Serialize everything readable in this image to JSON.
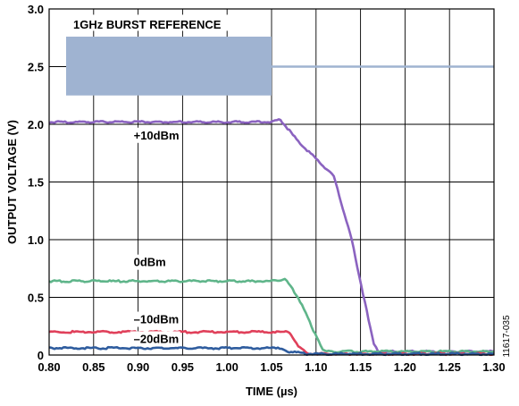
{
  "chart_data": {
    "type": "line",
    "title": "",
    "xlabel": "TIME (µs)",
    "ylabel": "OUTPUT VOLTAGE (V)",
    "xlim": [
      0.8,
      1.3
    ],
    "ylim": [
      0,
      3.0
    ],
    "xticks": [
      "0.80",
      "0.85",
      "0.90",
      "0.95",
      "1.00",
      "1.05",
      "1.10",
      "1.15",
      "1.20",
      "1.25",
      "1.30"
    ],
    "yticks": [
      "0",
      "0.5",
      "1.0",
      "1.5",
      "2.0",
      "2.5",
      "3.0"
    ],
    "grid": true,
    "figure_id": "11617-035",
    "reference": {
      "label": "1GHz BURST REFERENCE",
      "burst_x": [
        0.8,
        1.05
      ],
      "burst_y": [
        2.25,
        2.76
      ],
      "level": 2.5,
      "color": "#9fb3d1"
    },
    "series": [
      {
        "name": "+10dBm",
        "color": "#8b63c0",
        "x": [
          0.8,
          1.05,
          1.06,
          1.08,
          1.1,
          1.12,
          1.14,
          1.155,
          1.165,
          1.17,
          1.3
        ],
        "y": [
          2.02,
          2.02,
          2.04,
          1.85,
          1.7,
          1.55,
          1.0,
          0.45,
          0.1,
          0.03,
          0.03
        ]
      },
      {
        "name": "0dBm",
        "color": "#5fb58a",
        "x": [
          0.8,
          1.05,
          1.065,
          1.08,
          1.095,
          1.105,
          1.11,
          1.3
        ],
        "y": [
          0.64,
          0.64,
          0.66,
          0.5,
          0.25,
          0.08,
          0.03,
          0.03
        ]
      },
      {
        "name": "-10dBm",
        "color": "#e0405a",
        "x": [
          0.8,
          1.07,
          1.08,
          1.09,
          1.3
        ],
        "y": [
          0.2,
          0.2,
          0.08,
          0.01,
          0.01
        ]
      },
      {
        "name": "-20dBm",
        "color": "#2e5c9e",
        "x": [
          0.8,
          1.055,
          1.07,
          1.09,
          1.3
        ],
        "y": [
          0.06,
          0.06,
          0.03,
          0.01,
          0.01
        ]
      }
    ],
    "annotations": [
      {
        "text": "+10dBm",
        "x": 0.895,
        "y": 1.87
      },
      {
        "text": "0dBm",
        "x": 0.895,
        "y": 0.77
      },
      {
        "text": "–10dBm",
        "x": 0.895,
        "y": 0.275
      },
      {
        "text": "–20dBm",
        "x": 0.895,
        "y": 0.105
      }
    ]
  }
}
